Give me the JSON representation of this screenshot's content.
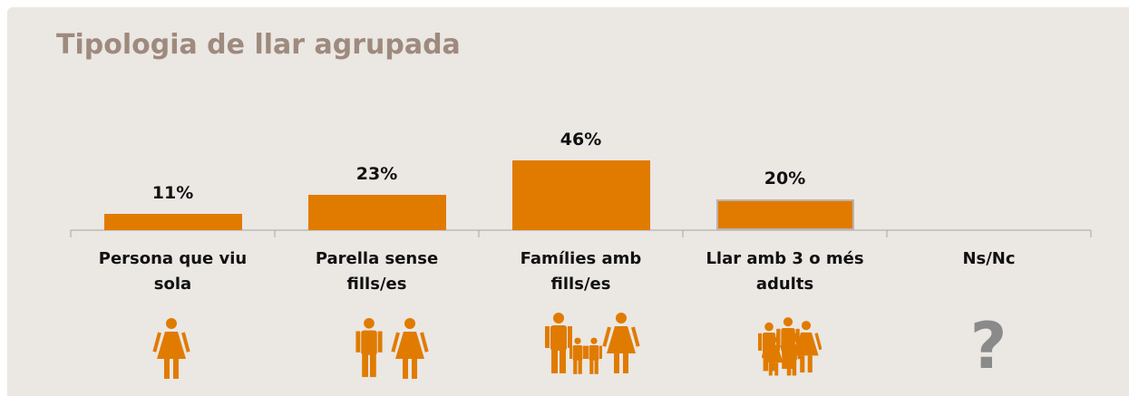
{
  "chart_data": {
    "type": "bar",
    "title": "Tipologia de llar agrupada",
    "categories": [
      "Persona que viu sola",
      "Parella sense fills/es",
      "Famílies amb fills/es",
      "Llar amb 3 o més adults",
      "Ns/Nc"
    ],
    "values": [
      11,
      23,
      46,
      20,
      null
    ],
    "value_labels": [
      "11%",
      "23%",
      "46%",
      "20%",
      null
    ],
    "color": "#e07b00"
  }
}
